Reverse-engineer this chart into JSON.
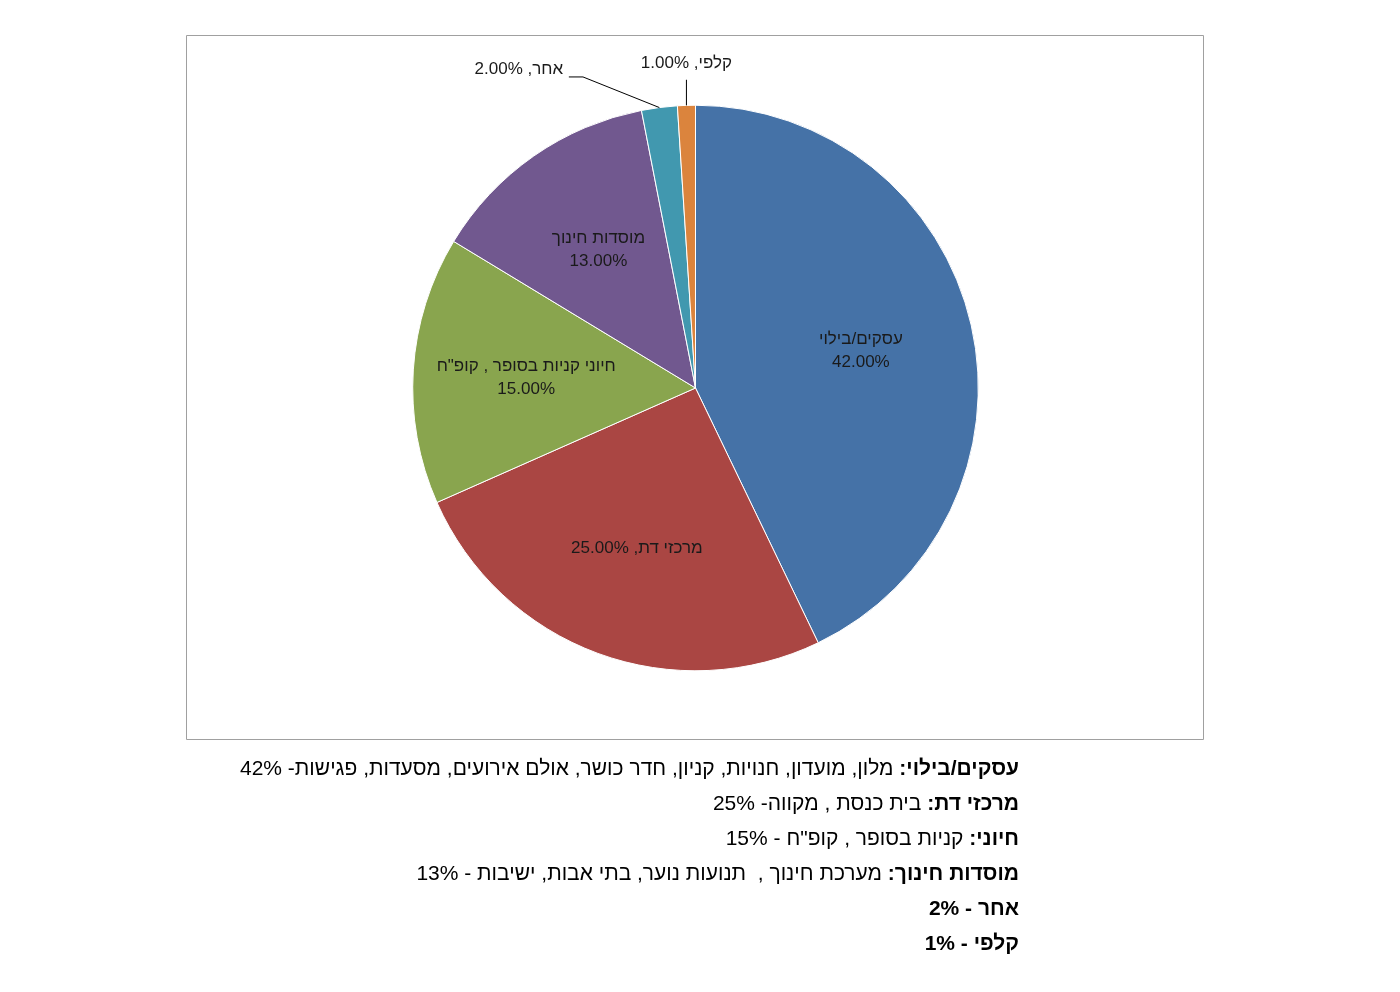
{
  "chart_data": {
    "type": "pie",
    "categories": [
      "עסקים/בילוי",
      "מרכזי דת",
      "חיוני קניות בסופר , קופ\"ח",
      "מוסדות חינוך",
      "אחר",
      "קלפי"
    ],
    "values": [
      42,
      25,
      15,
      13,
      2,
      1
    ],
    "value_labels": [
      "42.00%",
      "25.00%",
      "15.00%",
      "13.00%",
      "2.00%",
      "1.00%"
    ],
    "colors": [
      "#4572a7",
      "#aa4643",
      "#89a54e",
      "#71588f",
      "#4198af",
      "#db843d"
    ],
    "annotations": [
      "עסקים/בילוי: מלון, מועדון, חנויות, קניון, חדר כושר, אולם אירועים, מסעדות, פגישות- 42%",
      "מרכזי דת: בית כנסת , מקווה- 25%",
      "חיוני: קניות בסופר , קופ\"ח - 15%",
      "מוסדות חינוך: מערכת חינוך ,  תנועות נוער, בתי אבות, ישיבות - 13%",
      "אחר - 2%",
      "קלפי - 1%"
    ]
  }
}
